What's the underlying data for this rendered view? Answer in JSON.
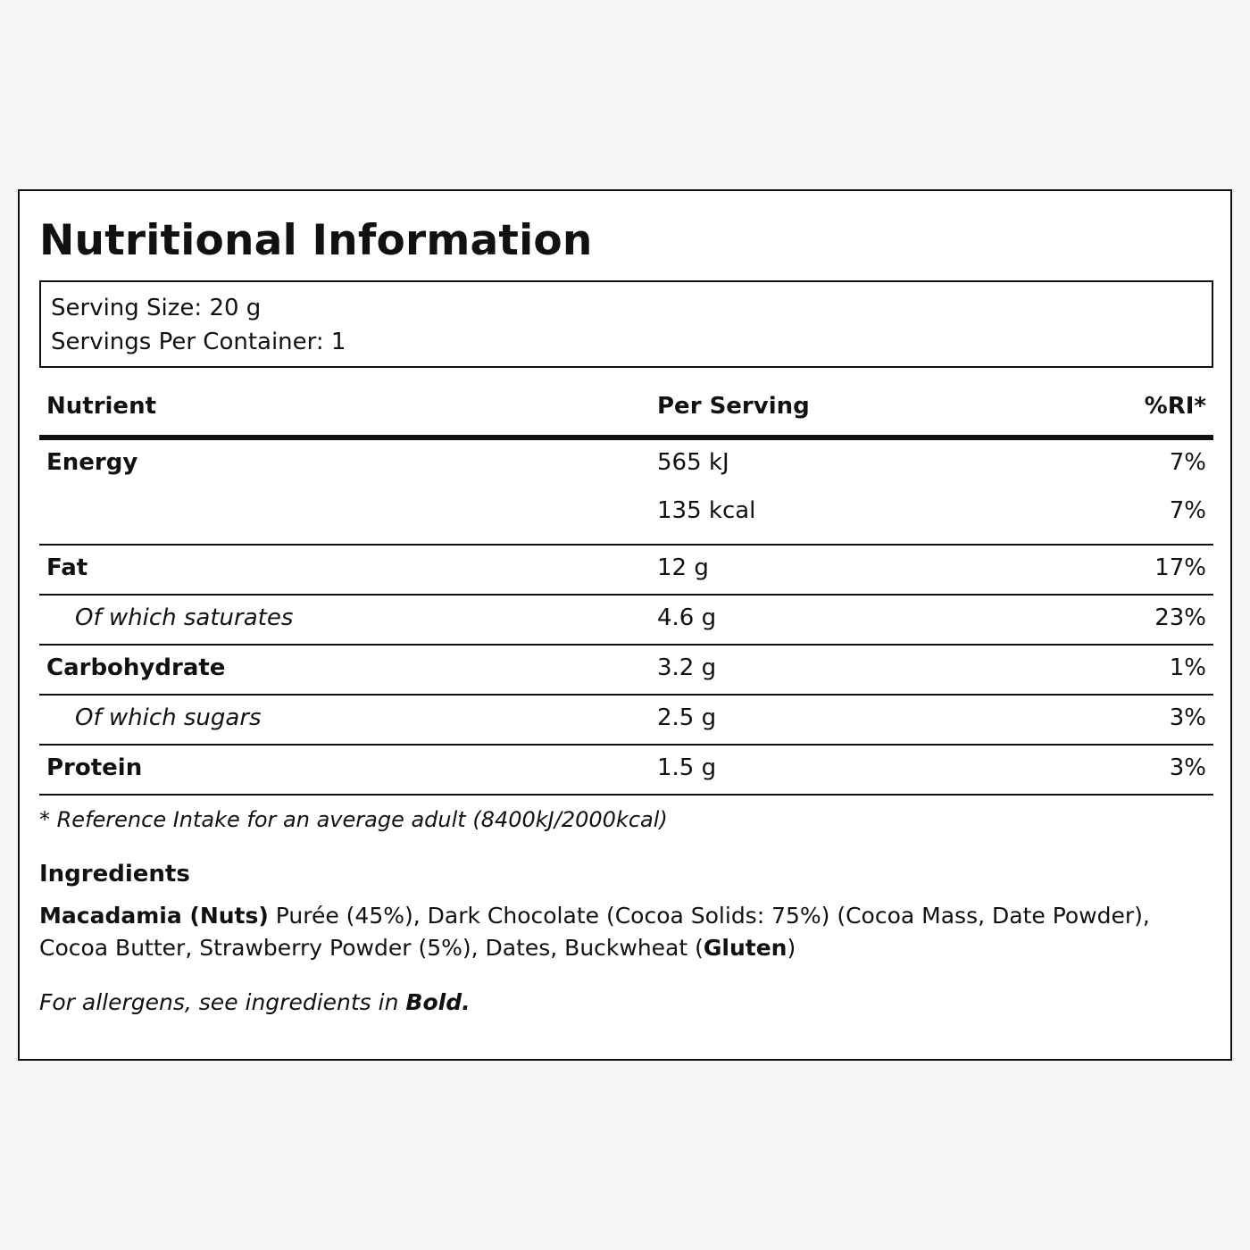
{
  "title": "Nutritional Information",
  "serving": {
    "size": "Serving Size: 20 g",
    "per_container": "Servings Per Container: 1"
  },
  "table": {
    "headers": {
      "nutrient": "Nutrient",
      "per_serving": "Per Serving",
      "ri": "%RI*"
    },
    "energy": {
      "name": "Energy",
      "kj": "565 kJ",
      "kj_ri": "7%",
      "kcal": "135 kcal",
      "kcal_ri": "7%"
    },
    "rows": [
      {
        "name": "Fat",
        "value": "12 g",
        "ri": "17%"
      },
      {
        "name": "Of which saturates",
        "value": "4.6 g",
        "ri": "23%"
      },
      {
        "name": "Carbohydrate",
        "value": "3.2 g",
        "ri": "1%"
      },
      {
        "name": "Of which sugars",
        "value": "2.5 g",
        "ri": "3%"
      },
      {
        "name": "Protein",
        "value": "1.5 g",
        "ri": "3%"
      }
    ]
  },
  "footnote": "* Reference Intake for an average adult (8400kJ/2000kcal)",
  "ingredients": {
    "heading": "Ingredients",
    "allergen1": "Macadamia (Nuts)",
    "text1": " Purée (45%), Dark Chocolate (Cocoa Solids: 75%) (Cocoa Mass, Date Powder), Cocoa Butter, Strawberry Powder (5%), Dates, Buckwheat (",
    "allergen2": "Gluten",
    "text2": ")"
  },
  "allergen_note": {
    "text": "For allergens, see ingredients in ",
    "bold": "Bold."
  }
}
